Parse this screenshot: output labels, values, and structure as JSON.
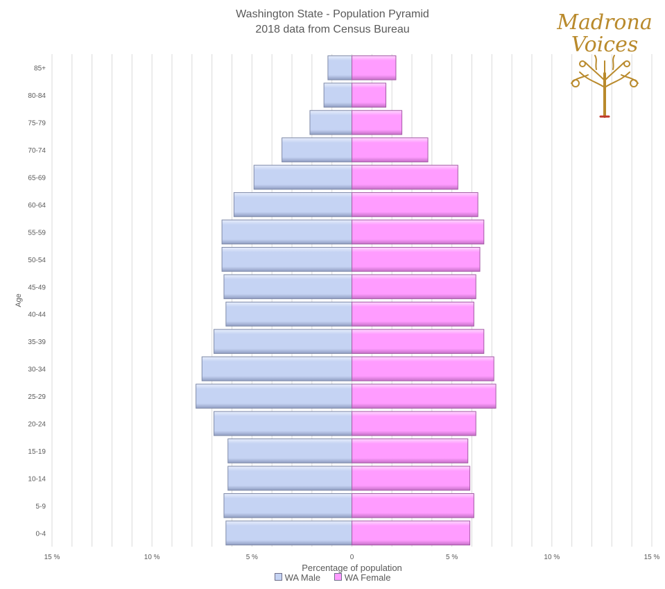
{
  "chart_data": {
    "type": "bar",
    "orientation": "horizontal",
    "title": "Washington State - Population Pyramid",
    "subtitle": "2018 data from Census Bureau",
    "xlabel": "Percentage of population",
    "ylabel": "Age",
    "categories": [
      "0-4",
      "5-9",
      "10-14",
      "15-19",
      "20-24",
      "25-29",
      "30-34",
      "35-39",
      "40-44",
      "45-49",
      "50-54",
      "55-59",
      "60-64",
      "65-69",
      "70-74",
      "75-79",
      "80-84",
      "85+"
    ],
    "series": [
      {
        "name": "WA Male",
        "color": "#c5d3f3",
        "values": [
          -6.3,
          -6.4,
          -6.2,
          -6.2,
          -6.9,
          -7.8,
          -7.5,
          -6.9,
          -6.3,
          -6.4,
          -6.5,
          -6.5,
          -5.9,
          -4.9,
          -3.5,
          -2.1,
          -1.4,
          -1.2
        ]
      },
      {
        "name": "WA Female",
        "color": "#ff9cff",
        "values": [
          5.9,
          6.1,
          5.9,
          5.8,
          6.2,
          7.2,
          7.1,
          6.6,
          6.1,
          6.2,
          6.4,
          6.6,
          6.3,
          5.3,
          3.8,
          2.5,
          1.7,
          2.2
        ]
      }
    ],
    "xlim": [
      -15,
      15
    ],
    "xticks": [
      -15,
      -10,
      -5,
      0,
      5,
      10,
      15
    ],
    "xtick_labels": [
      "15 %",
      "10 %",
      "5 %",
      "0",
      "5 %",
      "10 %",
      "15 %"
    ],
    "grid": true,
    "legend": "bottom"
  },
  "logo": {
    "line1": "Madrona",
    "line2": "Voices"
  }
}
